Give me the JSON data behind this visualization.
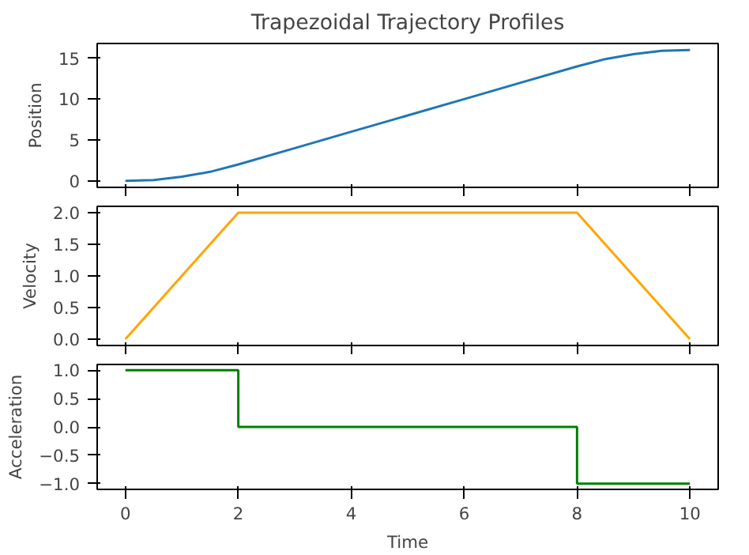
{
  "chart_data": [
    {
      "type": "line",
      "title": "Trapezoidal Trajectory Profiles",
      "ylabel": "Position",
      "x": [
        0,
        0.5,
        1,
        1.5,
        2,
        3,
        4,
        5,
        6,
        7,
        8,
        8.5,
        9,
        9.5,
        10
      ],
      "series": [
        {
          "color": "#1f77b4",
          "values": [
            0,
            0.1,
            0.5,
            1.1,
            2,
            4,
            6,
            8,
            10,
            12,
            14,
            14.9,
            15.5,
            15.9,
            16
          ]
        }
      ],
      "xlim": [
        -0.5,
        10.5
      ],
      "xticks": [
        0,
        2,
        4,
        6,
        8,
        10
      ],
      "ylim": [
        -0.8,
        16.8
      ],
      "yticks": [
        0,
        5,
        10,
        15
      ],
      "tick_labels": "y"
    },
    {
      "type": "line",
      "ylabel": "Velocity",
      "x": [
        0,
        2,
        8,
        10
      ],
      "series": [
        {
          "color": "#ffa500",
          "values": [
            0,
            2,
            2,
            0
          ]
        }
      ],
      "xlim": [
        -0.5,
        10.5
      ],
      "xticks": [
        0,
        2,
        4,
        6,
        8,
        10
      ],
      "ylim": [
        -0.1,
        2.1
      ],
      "yticks": [
        {
          "value": 0,
          "label": "0.0"
        },
        0.5,
        {
          "value": 1,
          "label": "1.0"
        },
        1.5,
        {
          "value": 2,
          "label": "2.0"
        }
      ],
      "tick_labels": "y"
    },
    {
      "type": "step",
      "xlabel": "Time",
      "ylabel": "Acceleration",
      "x": [
        0,
        2,
        8,
        10
      ],
      "series": [
        {
          "color": "#008000",
          "values": [
            1,
            0,
            -1,
            -1
          ]
        }
      ],
      "xlim": [
        -0.5,
        10.5
      ],
      "xticks": [
        0,
        2,
        4,
        6,
        8,
        10
      ],
      "ylim": [
        -1.1,
        1.1
      ],
      "yticks": [
        {
          "value": -1,
          "label": "−1.0"
        },
        -0.5,
        {
          "value": 0,
          "label": "0.0"
        },
        0.5,
        {
          "value": 1,
          "label": "1.0"
        }
      ]
    }
  ]
}
